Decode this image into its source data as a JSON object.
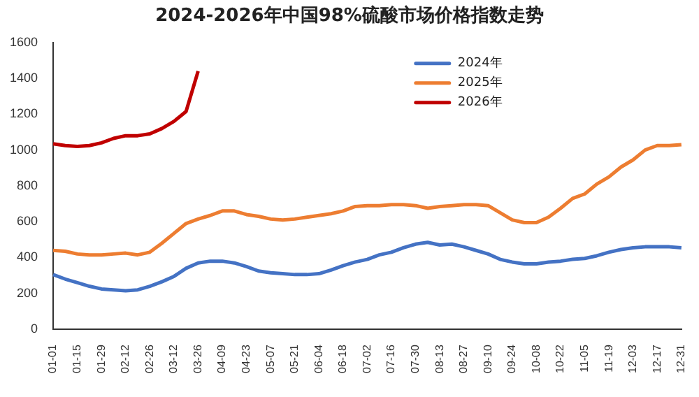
{
  "chart_data": {
    "type": "line",
    "title": "2024-2026年中国98%硫酸市场价格指数走势",
    "categories": [
      "01-01",
      null,
      "01-15",
      null,
      "01-29",
      null,
      "02-12",
      null,
      "02-26",
      null,
      "03-12",
      null,
      "03-26",
      null,
      "04-09",
      null,
      "04-23",
      null,
      "05-07",
      null,
      "05-21",
      null,
      "06-04",
      null,
      "06-18",
      null,
      "07-02",
      null,
      "07-16",
      null,
      "07-30",
      null,
      "08-13",
      null,
      "08-27",
      null,
      "09-10",
      null,
      "09-24",
      null,
      "10-08",
      null,
      "10-22",
      null,
      "11-05",
      null,
      "11-19",
      null,
      "12-03",
      null,
      "12-17",
      null,
      "12-31"
    ],
    "series": [
      {
        "name": "2024年",
        "color": "#4472c4",
        "values": [
          305,
          280,
          260,
          240,
          225,
          220,
          215,
          220,
          240,
          265,
          295,
          340,
          370,
          380,
          380,
          370,
          350,
          325,
          315,
          310,
          305,
          305,
          310,
          330,
          355,
          375,
          390,
          415,
          430,
          455,
          475,
          485,
          470,
          475,
          460,
          440,
          420,
          390,
          375,
          365,
          365,
          375,
          380,
          390,
          395,
          410,
          430,
          445,
          455,
          460,
          460,
          460,
          455
        ]
      },
      {
        "name": "2025年",
        "color": "#ed7d31",
        "values": [
          440,
          435,
          420,
          415,
          415,
          420,
          425,
          415,
          430,
          480,
          535,
          590,
          615,
          635,
          660,
          660,
          640,
          630,
          615,
          610,
          615,
          625,
          635,
          645,
          660,
          685,
          690,
          690,
          695,
          695,
          690,
          675,
          685,
          690,
          695,
          695,
          690,
          650,
          610,
          595,
          595,
          625,
          675,
          730,
          755,
          810,
          850,
          905,
          945,
          1000,
          1025,
          1025,
          1030
        ]
      },
      {
        "name": "2026年",
        "color": "#c00000",
        "values": [
          1035,
          1025,
          1020,
          1025,
          1040,
          1065,
          1080,
          1080,
          1090,
          1120,
          1160,
          1215,
          1440,
          null,
          null,
          null,
          null,
          null,
          null,
          null,
          null,
          null,
          null,
          null,
          null,
          null,
          null,
          null,
          null,
          null,
          null,
          null,
          null,
          null,
          null,
          null,
          null,
          null,
          null,
          null,
          null,
          null,
          null,
          null,
          null,
          null,
          null,
          null,
          null,
          null,
          null,
          null,
          null
        ]
      }
    ],
    "ylim": [
      0,
      1600
    ],
    "yticks": [
      0,
      200,
      400,
      600,
      800,
      1000,
      1200,
      1400,
      1600
    ],
    "grid": false,
    "legend": "top right",
    "marker": "none",
    "line_style": "solid"
  }
}
